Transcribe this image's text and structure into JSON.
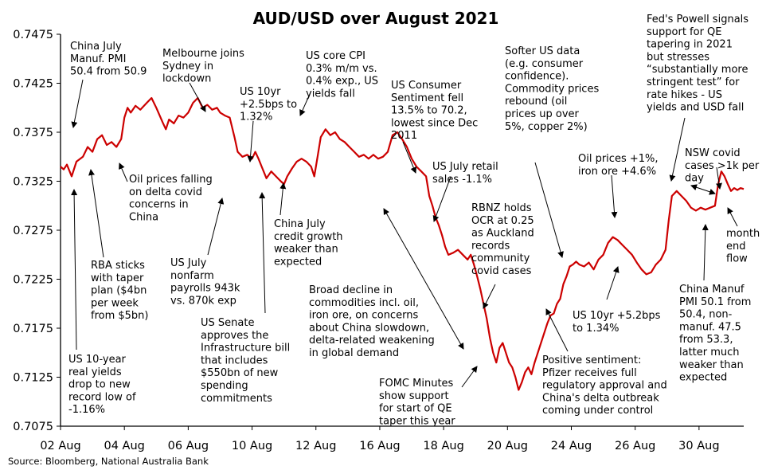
{
  "chart_data": {
    "type": "line",
    "title": "AUD/USD over August 2021",
    "source": "Source: Bloomberg, National Australia Bank",
    "xlabel": "",
    "ylabel": "",
    "ylim": [
      0.7075,
      0.7475
    ],
    "y_ticks": [
      "0.7475",
      "0.7425",
      "0.7375",
      "0.7325",
      "0.7275",
      "0.7225",
      "0.7175",
      "0.7125",
      "0.7075"
    ],
    "x_ticks": [
      "02 Aug",
      "04 Aug",
      "06 Aug",
      "10 Aug",
      "12 Aug",
      "16 Aug",
      "18 Aug",
      "20 Aug",
      "24 Aug",
      "26 Aug",
      "30 Aug"
    ],
    "grid": false,
    "line_color": "#cc0000",
    "series": [
      {
        "values": [
          [
            0,
            0.734
          ],
          [
            0.1,
            0.7337
          ],
          [
            0.2,
            0.7342
          ],
          [
            0.35,
            0.733
          ],
          [
            0.5,
            0.7345
          ],
          [
            0.7,
            0.735
          ],
          [
            0.85,
            0.736
          ],
          [
            1.0,
            0.7355
          ],
          [
            1.15,
            0.7368
          ],
          [
            1.3,
            0.7372
          ],
          [
            1.45,
            0.7362
          ],
          [
            1.6,
            0.7365
          ],
          [
            1.75,
            0.736
          ],
          [
            1.9,
            0.7368
          ],
          [
            2.0,
            0.739
          ],
          [
            2.1,
            0.74
          ],
          [
            2.2,
            0.7395
          ],
          [
            2.35,
            0.7402
          ],
          [
            2.5,
            0.7398
          ],
          [
            2.7,
            0.7405
          ],
          [
            2.85,
            0.741
          ],
          [
            3.0,
            0.74
          ],
          [
            3.2,
            0.7385
          ],
          [
            3.3,
            0.7378
          ],
          [
            3.4,
            0.7388
          ],
          [
            3.55,
            0.7384
          ],
          [
            3.7,
            0.7392
          ],
          [
            3.85,
            0.739
          ],
          [
            4.0,
            0.7395
          ],
          [
            4.15,
            0.7405
          ],
          [
            4.3,
            0.741
          ],
          [
            4.45,
            0.74
          ],
          [
            4.6,
            0.7403
          ],
          [
            4.75,
            0.7398
          ],
          [
            4.9,
            0.74
          ],
          [
            5.0,
            0.7395
          ],
          [
            5.15,
            0.7392
          ],
          [
            5.3,
            0.739
          ],
          [
            5.45,
            0.737
          ],
          [
            5.55,
            0.7355
          ],
          [
            5.7,
            0.735
          ],
          [
            5.85,
            0.7352
          ],
          [
            6.0,
            0.7348
          ],
          [
            6.1,
            0.7355
          ],
          [
            6.2,
            0.7348
          ],
          [
            6.3,
            0.734
          ],
          [
            6.45,
            0.7328
          ],
          [
            6.6,
            0.7335
          ],
          [
            6.75,
            0.733
          ],
          [
            6.9,
            0.7325
          ],
          [
            7.0,
            0.7322
          ],
          [
            7.1,
            0.733
          ],
          [
            7.25,
            0.7338
          ],
          [
            7.4,
            0.7345
          ],
          [
            7.55,
            0.7348
          ],
          [
            7.7,
            0.7345
          ],
          [
            7.85,
            0.734
          ],
          [
            7.95,
            0.733
          ],
          [
            8.05,
            0.735
          ],
          [
            8.15,
            0.737
          ],
          [
            8.3,
            0.7378
          ],
          [
            8.45,
            0.7372
          ],
          [
            8.6,
            0.7375
          ],
          [
            8.75,
            0.7368
          ],
          [
            8.9,
            0.7365
          ],
          [
            9.05,
            0.736
          ],
          [
            9.2,
            0.7355
          ],
          [
            9.35,
            0.735
          ],
          [
            9.5,
            0.7352
          ],
          [
            9.65,
            0.7348
          ],
          [
            9.8,
            0.7352
          ],
          [
            9.95,
            0.7348
          ],
          [
            10.1,
            0.735
          ],
          [
            10.25,
            0.7355
          ],
          [
            10.4,
            0.7372
          ],
          [
            10.55,
            0.7375
          ],
          [
            10.7,
            0.7368
          ],
          [
            10.85,
            0.736
          ],
          [
            11.0,
            0.7348
          ],
          [
            11.15,
            0.734
          ],
          [
            11.3,
            0.7335
          ],
          [
            11.45,
            0.733
          ],
          [
            11.55,
            0.731
          ],
          [
            11.65,
            0.73
          ],
          [
            11.75,
            0.7288
          ],
          [
            11.85,
            0.728
          ],
          [
            11.95,
            0.727
          ],
          [
            12.05,
            0.7258
          ],
          [
            12.15,
            0.725
          ],
          [
            12.3,
            0.7252
          ],
          [
            12.45,
            0.7255
          ],
          [
            12.6,
            0.725
          ],
          [
            12.75,
            0.7245
          ],
          [
            12.85,
            0.725
          ],
          [
            12.95,
            0.724
          ],
          [
            13.05,
            0.7228
          ],
          [
            13.15,
            0.7215
          ],
          [
            13.25,
            0.72
          ],
          [
            13.35,
            0.7185
          ],
          [
            13.45,
            0.7165
          ],
          [
            13.55,
            0.715
          ],
          [
            13.65,
            0.714
          ],
          [
            13.75,
            0.7155
          ],
          [
            13.85,
            0.716
          ],
          [
            13.95,
            0.715
          ],
          [
            14.05,
            0.714
          ],
          [
            14.15,
            0.7135
          ],
          [
            14.25,
            0.7125
          ],
          [
            14.35,
            0.7112
          ],
          [
            14.45,
            0.712
          ],
          [
            14.55,
            0.713
          ],
          [
            14.65,
            0.7135
          ],
          [
            14.75,
            0.7128
          ],
          [
            14.85,
            0.714
          ],
          [
            14.95,
            0.715
          ],
          [
            15.05,
            0.716
          ],
          [
            15.15,
            0.717
          ],
          [
            15.25,
            0.718
          ],
          [
            15.35,
            0.7188
          ],
          [
            15.45,
            0.719
          ],
          [
            15.55,
            0.72
          ],
          [
            15.65,
            0.7205
          ],
          [
            15.75,
            0.722
          ],
          [
            15.85,
            0.7228
          ],
          [
            15.95,
            0.7238
          ],
          [
            16.05,
            0.724
          ],
          [
            16.15,
            0.7243
          ],
          [
            16.25,
            0.724
          ],
          [
            16.4,
            0.7238
          ],
          [
            16.55,
            0.7242
          ],
          [
            16.7,
            0.7235
          ],
          [
            16.85,
            0.7245
          ],
          [
            17.0,
            0.725
          ],
          [
            17.15,
            0.7262
          ],
          [
            17.3,
            0.7268
          ],
          [
            17.45,
            0.7265
          ],
          [
            17.6,
            0.726
          ],
          [
            17.75,
            0.7255
          ],
          [
            17.9,
            0.725
          ],
          [
            18.05,
            0.7242
          ],
          [
            18.2,
            0.7235
          ],
          [
            18.35,
            0.723
          ],
          [
            18.5,
            0.7232
          ],
          [
            18.65,
            0.724
          ],
          [
            18.8,
            0.7245
          ],
          [
            18.95,
            0.7255
          ],
          [
            19.05,
            0.7285
          ],
          [
            19.15,
            0.731
          ],
          [
            19.3,
            0.7315
          ],
          [
            19.45,
            0.731
          ],
          [
            19.6,
            0.7305
          ],
          [
            19.75,
            0.7298
          ],
          [
            19.9,
            0.7295
          ],
          [
            20.05,
            0.7298
          ],
          [
            20.2,
            0.7296
          ],
          [
            20.35,
            0.7298
          ],
          [
            20.5,
            0.73
          ],
          [
            20.6,
            0.7322
          ],
          [
            20.7,
            0.7335
          ],
          [
            20.8,
            0.733
          ],
          [
            20.9,
            0.7322
          ],
          [
            21.0,
            0.7315
          ],
          [
            21.1,
            0.7318
          ],
          [
            21.2,
            0.7316
          ],
          [
            21.3,
            0.7318
          ],
          [
            21.4,
            0.7317
          ]
        ]
      }
    ],
    "annotations": [
      {
        "lines": [
          "China July",
          "Manuf. PMI",
          "50.4 from 50.9"
        ]
      },
      {
        "lines": [
          "Melbourne joins",
          "Sydney in",
          "lockdown"
        ]
      },
      {
        "lines": [
          "US 10yr",
          "+2.5bps to",
          "1.32%"
        ]
      },
      {
        "lines": [
          "US core CPI",
          "0.3% m/m vs.",
          "0.4% exp., US",
          "yields fall"
        ]
      },
      {
        "lines": [
          "US  Consumer",
          "Sentiment fell",
          "13.5% to 70.2,",
          "lowest since Dec",
          "2011"
        ]
      },
      {
        "lines": [
          "Softer US data",
          "(e.g. consumer",
          "confidence).",
          "Commodity prices",
          "rebound (oil",
          "prices  up over",
          "5%, copper 2%)"
        ]
      },
      {
        "lines": [
          "Fed's Powell signals",
          "support for QE",
          "tapering in 2021",
          "but stresses",
          "“substantially more",
          "stringent test”  for",
          "rate hikes - US",
          "yields and USD fall"
        ]
      },
      {
        "lines": [
          "Oil prices falling",
          "on delta covid",
          "concerns in",
          "China"
        ]
      },
      {
        "lines": [
          "US July retail",
          "sales -1.1%"
        ]
      },
      {
        "lines": [
          "Oil prices +1%,",
          "iron ore +4.6%"
        ]
      },
      {
        "lines": [
          "NSW covid",
          "cases >1k  per",
          "day"
        ]
      },
      {
        "lines": [
          "China July",
          "credit growth",
          "weaker than",
          "expected"
        ]
      },
      {
        "lines": [
          "RBA sticks",
          "with taper",
          "plan ($4bn",
          "per week",
          "from $5bn)"
        ]
      },
      {
        "lines": [
          "US July",
          "nonfarm",
          "payrolls 943k",
          "vs. 870k exp"
        ]
      },
      {
        "lines": [
          "RBNZ holds",
          "OCR at 0.25",
          "as Auckland",
          "records",
          "community",
          "covid cases"
        ]
      },
      {
        "lines": [
          "month",
          "end",
          "flow"
        ]
      },
      {
        "lines": [
          "Broad decline in",
          "commodities incl. oil,",
          "iron ore, on concerns",
          "about China slowdown,",
          "delta-related weakening",
          "in global demand"
        ]
      },
      {
        "lines": [
          "China Manuf",
          "PMI 50.1 from",
          "50.4, non-",
          "manuf. 47.5",
          "from 53.3,",
          "latter much",
          "weaker than",
          "expected"
        ]
      },
      {
        "lines": [
          "US 10yr +5.2bps",
          "to 1.34%"
        ]
      },
      {
        "lines": [
          "US Senate",
          "approves the",
          "Infrastructure bill",
          "that includes",
          "$550bn of new",
          "spending",
          "commitments"
        ]
      },
      {
        "lines": [
          "Positive sentiment:",
          "Pfizer receives full",
          "regulatory approval and",
          "China's delta outbreak",
          "coming under control"
        ]
      },
      {
        "lines": [
          "US 10-year",
          "real yields",
          "drop to new",
          "record low of",
          "-1.16%"
        ]
      },
      {
        "lines": [
          "FOMC Minutes",
          "show support",
          "for start of QE",
          "taper this year"
        ]
      }
    ]
  }
}
